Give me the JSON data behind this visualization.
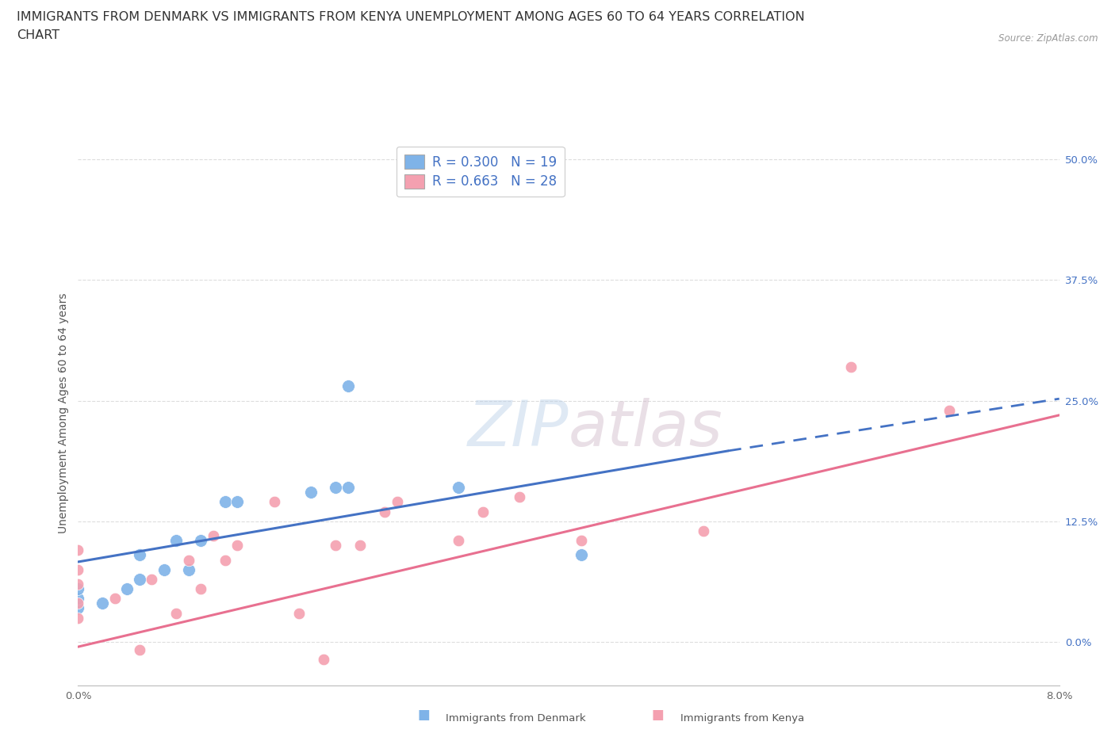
{
  "title_line1": "IMMIGRANTS FROM DENMARK VS IMMIGRANTS FROM KENYA UNEMPLOYMENT AMONG AGES 60 TO 64 YEARS CORRELATION",
  "title_line2": "CHART",
  "source": "Source: ZipAtlas.com",
  "ylabel": "Unemployment Among Ages 60 to 64 years",
  "xlim": [
    0.0,
    0.08
  ],
  "ylim": [
    -0.045,
    0.52
  ],
  "yticks": [
    0.0,
    0.125,
    0.25,
    0.375,
    0.5
  ],
  "ytick_labels": [
    "0.0%",
    "12.5%",
    "25.0%",
    "37.5%",
    "50.0%"
  ],
  "xtick_positions": [
    0.0,
    0.01,
    0.02,
    0.03,
    0.04,
    0.05,
    0.06,
    0.07,
    0.08
  ],
  "xtick_labels": [
    "0.0%",
    "",
    "",
    "",
    "",
    "",
    "",
    "",
    "8.0%"
  ],
  "background_color": "#ffffff",
  "grid_color": "#dddddd",
  "denmark_color": "#7fb3e8",
  "kenya_color": "#f4a0b0",
  "denmark_line_color": "#4472c4",
  "kenya_line_color": "#e87090",
  "denmark_R": 0.3,
  "denmark_N": 19,
  "kenya_R": 0.663,
  "kenya_N": 28,
  "denmark_scatter_x": [
    0.0,
    0.0,
    0.0,
    0.002,
    0.004,
    0.005,
    0.005,
    0.007,
    0.008,
    0.009,
    0.01,
    0.012,
    0.013,
    0.019,
    0.021,
    0.022,
    0.022,
    0.031,
    0.041
  ],
  "denmark_scatter_y": [
    0.035,
    0.045,
    0.055,
    0.04,
    0.055,
    0.065,
    0.09,
    0.075,
    0.105,
    0.075,
    0.105,
    0.145,
    0.145,
    0.155,
    0.16,
    0.16,
    0.265,
    0.16,
    0.09
  ],
  "kenya_scatter_x": [
    0.0,
    0.0,
    0.0,
    0.0,
    0.0,
    0.003,
    0.005,
    0.006,
    0.008,
    0.009,
    0.01,
    0.011,
    0.012,
    0.013,
    0.016,
    0.018,
    0.02,
    0.021,
    0.023,
    0.025,
    0.026,
    0.031,
    0.033,
    0.036,
    0.041,
    0.051,
    0.063,
    0.071
  ],
  "kenya_scatter_y": [
    0.025,
    0.04,
    0.06,
    0.075,
    0.095,
    0.045,
    -0.008,
    0.065,
    0.03,
    0.085,
    0.055,
    0.11,
    0.085,
    0.1,
    0.145,
    0.03,
    -0.018,
    0.1,
    0.1,
    0.135,
    0.145,
    0.105,
    0.135,
    0.15,
    0.105,
    0.115,
    0.285,
    0.24
  ],
  "dk_line_x0": 0.0,
  "dk_line_x1": 0.053,
  "dk_line_x2": 0.08,
  "dk_line_y0": 0.083,
  "dk_line_y1": 0.198,
  "dk_line_y2": 0.252,
  "kn_line_x0": 0.0,
  "kn_line_x1": 0.08,
  "kn_line_y0": -0.005,
  "kn_line_y1": 0.235,
  "title_fontsize": 11.5,
  "axis_label_fontsize": 10,
  "tick_fontsize": 9.5,
  "legend_fontsize": 12
}
